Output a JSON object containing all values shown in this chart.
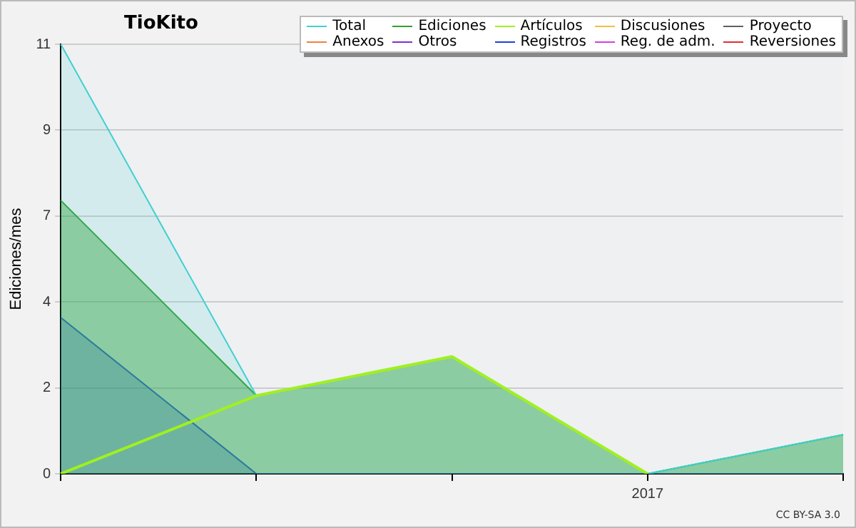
{
  "chart_data": {
    "type": "area",
    "title": "TioKito",
    "ylabel": "Ediciones/mes",
    "annotations": [
      "CC BY-SA 3.0"
    ],
    "categories": [
      null,
      null,
      null,
      "2017",
      null
    ],
    "ylim": [
      0,
      11
    ],
    "yticks": [
      0,
      {
        "value": 2.2,
        "label": "2"
      },
      {
        "value": 4.4,
        "label": "4"
      },
      {
        "value": 6.6,
        "label": "7"
      },
      {
        "value": 8.8,
        "label": "9"
      },
      11
    ],
    "grid": "y",
    "legend": "top right",
    "marker": "none",
    "series": [
      {
        "name": "Total",
        "color": "#40d0d0",
        "values": [
          11,
          2,
          3,
          0,
          1
        ]
      },
      {
        "name": "Ediciones",
        "color": "#30a030",
        "values": [
          7,
          2,
          3,
          0,
          1
        ]
      },
      {
        "name": "Artículos",
        "color": "#a0f020",
        "type": "line",
        "values": [
          0,
          2,
          3,
          0,
          null
        ]
      },
      {
        "name": "Discusiones",
        "color": "#f0c040",
        "values": [
          null,
          null,
          null,
          null,
          null
        ]
      },
      {
        "name": "Proyecto",
        "color": "#606060",
        "values": [
          null,
          null,
          null,
          null,
          null
        ]
      },
      {
        "name": "Anexos",
        "color": "#f08040",
        "values": [
          null,
          null,
          null,
          null,
          null
        ]
      },
      {
        "name": "Otros",
        "color": "#8030d0",
        "values": [
          null,
          null,
          null,
          null,
          null
        ]
      },
      {
        "name": "Registros",
        "color": "#2040e0",
        "values": [
          4,
          0,
          0,
          0,
          0
        ]
      },
      {
        "name": "Reg. de adm.",
        "color": "#d040e0",
        "values": [
          null,
          null,
          null,
          null,
          null
        ]
      },
      {
        "name": "Reversiones",
        "color": "#e03030",
        "values": [
          null,
          null,
          null,
          null,
          null
        ]
      }
    ]
  }
}
